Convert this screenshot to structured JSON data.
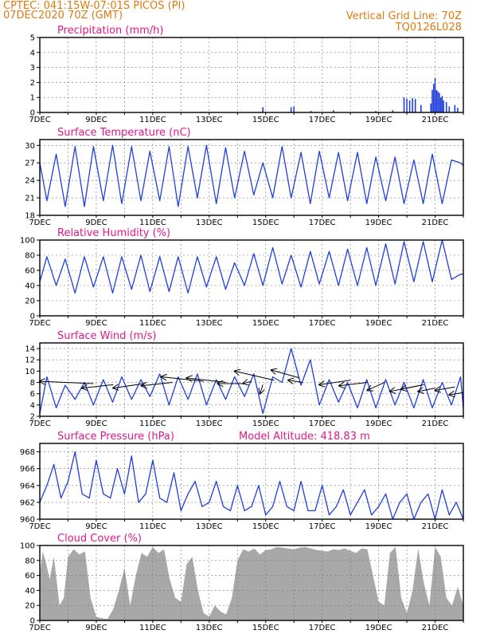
{
  "header": {
    "line1": "CPTEC:  041:15W-07:01S  PICOS (PI)",
    "line2": "07DEC2020 70Z (GMT)",
    "right1": "Vertical Grid Line: 70Z",
    "right2": "TQ0126L028"
  },
  "colors": {
    "line": "#1f3fdc",
    "bar": "#1f3fdc",
    "cloud": "#a8a8a8",
    "title": "#e0188c",
    "header": "#e07a10"
  },
  "x_axis": {
    "labels": [
      "7DEC",
      "9DEC",
      "11DEC",
      "13DEC",
      "15DEC",
      "17DEC",
      "19DEC",
      "21DEC"
    ]
  },
  "chart_data": [
    {
      "id": "precip",
      "type": "bar",
      "title": "Precipitation (mm/h)",
      "ylim": [
        0,
        5
      ],
      "yticks": [
        0,
        1,
        2,
        3,
        4,
        5
      ],
      "x_days": [
        7.9,
        8.6,
        9.3,
        12.7,
        14.9,
        15.9,
        16.0,
        16.6,
        17.4,
        18.9,
        19.5,
        19.9,
        20.0,
        20.1,
        20.2,
        20.3,
        20.5,
        20.85,
        20.9,
        20.95,
        21.0,
        21.05,
        21.1,
        21.15,
        21.2,
        21.25,
        21.3,
        21.4,
        21.5,
        21.7,
        21.8
      ],
      "values": [
        0.05,
        0.04,
        0.05,
        0.04,
        0.35,
        0.35,
        0.4,
        0.1,
        0.15,
        0.1,
        0.15,
        1.0,
        0.9,
        0.8,
        0.95,
        0.9,
        0.5,
        0.6,
        1.5,
        1.9,
        2.3,
        1.5,
        1.4,
        1.3,
        1.0,
        1.1,
        0.8,
        0.7,
        0.4,
        0.5,
        0.3
      ]
    },
    {
      "id": "temp",
      "type": "line",
      "title": "Surface Temperature (nC)",
      "ylim": [
        18,
        31
      ],
      "yticks": [
        18,
        21,
        24,
        27,
        30
      ],
      "x_days": [
        7.0,
        7.25,
        7.58,
        7.9,
        8.25,
        8.58,
        8.9,
        9.25,
        9.58,
        9.9,
        10.25,
        10.58,
        10.9,
        11.25,
        11.58,
        11.9,
        12.25,
        12.58,
        12.9,
        13.25,
        13.58,
        13.9,
        14.25,
        14.58,
        14.9,
        15.25,
        15.58,
        15.9,
        16.25,
        16.58,
        16.9,
        17.25,
        17.58,
        17.9,
        18.25,
        18.58,
        18.9,
        19.25,
        19.58,
        19.9,
        20.25,
        20.58,
        20.9,
        21.25,
        21.58,
        21.9,
        22.0
      ],
      "values": [
        27,
        20.5,
        28.5,
        19.5,
        29.8,
        19.5,
        29.8,
        20.5,
        30.0,
        20.0,
        29.8,
        20.5,
        29.0,
        20.5,
        29.8,
        19.5,
        29.8,
        21.0,
        30.0,
        20.0,
        29.6,
        21.0,
        29.0,
        21.5,
        27.0,
        21.0,
        29.8,
        21.0,
        28.8,
        20.0,
        29.0,
        21.0,
        28.8,
        20.5,
        28.8,
        20.0,
        28.0,
        20.5,
        28.0,
        20.0,
        27.5,
        20.0,
        28.5,
        20.0,
        27.5,
        27.0,
        26.5
      ]
    },
    {
      "id": "rh",
      "type": "line",
      "title": "Relative Humidity (%)",
      "ylim": [
        0,
        100
      ],
      "yticks": [
        0,
        20,
        40,
        60,
        80,
        100
      ],
      "x_days": [
        7.0,
        7.25,
        7.58,
        7.9,
        8.25,
        8.58,
        8.9,
        9.25,
        9.58,
        9.9,
        10.25,
        10.58,
        10.9,
        11.25,
        11.58,
        11.9,
        12.25,
        12.58,
        12.9,
        13.25,
        13.58,
        13.9,
        14.25,
        14.58,
        14.9,
        15.25,
        15.58,
        15.9,
        16.25,
        16.58,
        16.9,
        17.25,
        17.58,
        17.9,
        18.25,
        18.58,
        18.9,
        19.25,
        19.58,
        19.9,
        20.25,
        20.58,
        20.9,
        21.25,
        21.58,
        21.9,
        22.0
      ],
      "values": [
        45,
        78,
        40,
        75,
        30,
        78,
        38,
        78,
        30,
        78,
        35,
        80,
        32,
        78,
        32,
        78,
        30,
        78,
        38,
        78,
        35,
        70,
        40,
        82,
        40,
        90,
        42,
        80,
        38,
        85,
        42,
        85,
        40,
        88,
        40,
        90,
        40,
        95,
        42,
        98,
        45,
        98,
        45,
        100,
        48,
        55,
        55
      ]
    },
    {
      "id": "wind",
      "type": "line",
      "title": "Surface Wind (m/s)",
      "ylim": [
        2,
        15
      ],
      "yticks": [
        2,
        4,
        6,
        8,
        10,
        12,
        14
      ],
      "x_days": [
        7.0,
        7.25,
        7.58,
        7.9,
        8.25,
        8.58,
        8.9,
        9.25,
        9.58,
        9.9,
        10.25,
        10.58,
        10.9,
        11.25,
        11.58,
        11.9,
        12.25,
        12.58,
        12.9,
        13.25,
        13.58,
        13.9,
        14.25,
        14.58,
        14.9,
        15.25,
        15.58,
        15.9,
        16.25,
        16.58,
        16.9,
        17.25,
        17.58,
        17.9,
        18.25,
        18.58,
        18.9,
        19.25,
        19.58,
        19.9,
        20.25,
        20.58,
        20.9,
        21.25,
        21.58,
        21.9,
        22.0
      ],
      "values": [
        2.5,
        9.0,
        3.5,
        7.5,
        5.0,
        8.0,
        4.0,
        8.5,
        4.5,
        9.0,
        5.0,
        8.5,
        5.5,
        9.5,
        4.0,
        9.0,
        5.0,
        9.5,
        4.0,
        8.5,
        5.0,
        9.0,
        5.5,
        9.5,
        2.5,
        9.0,
        8.0,
        14.0,
        7.5,
        12.0,
        4.0,
        8.5,
        4.5,
        8.0,
        3.5,
        8.5,
        3.5,
        8.5,
        4.0,
        8.0,
        3.5,
        8.5,
        3.5,
        8.0,
        4.0,
        9.0,
        3.5
      ],
      "vectors": [
        {
          "x": 7.0,
          "y": 8.2,
          "tx": 8.9,
          "ty": 7.8
        },
        {
          "x": 8.5,
          "y": 7.0,
          "tx": 9.6,
          "ty": 7.6
        },
        {
          "x": 9.6,
          "y": 7.0,
          "tx": 10.7,
          "ty": 7.8
        },
        {
          "x": 10.6,
          "y": 7.4,
          "tx": 11.7,
          "ty": 8.0
        },
        {
          "x": 11.3,
          "y": 9.0,
          "tx": 12.8,
          "ty": 8.2
        },
        {
          "x": 12.2,
          "y": 8.8,
          "tx": 13.6,
          "ty": 8.0
        },
        {
          "x": 13.3,
          "y": 7.8,
          "tx": 14.2,
          "ty": 7.8
        },
        {
          "x": 14.2,
          "y": 7.8,
          "tx": 14.5,
          "ty": 8.2
        },
        {
          "x": 13.9,
          "y": 10.0,
          "tx": 15.3,
          "ty": 8.4
        },
        {
          "x": 14.8,
          "y": 6.0,
          "tx": 14.9,
          "ty": 7.6
        },
        {
          "x": 15.2,
          "y": 10.2,
          "tx": 16.2,
          "ty": 8.8
        },
        {
          "x": 15.8,
          "y": 8.4,
          "tx": 16.3,
          "ty": 8.0
        },
        {
          "x": 16.9,
          "y": 7.6,
          "tx": 18.0,
          "ty": 8.4
        },
        {
          "x": 17.6,
          "y": 7.4,
          "tx": 18.6,
          "ty": 8.0
        },
        {
          "x": 18.6,
          "y": 6.6,
          "tx": 19.2,
          "ty": 8.0
        },
        {
          "x": 19.4,
          "y": 6.4,
          "tx": 20.4,
          "ty": 7.4
        },
        {
          "x": 19.8,
          "y": 6.8,
          "tx": 20.6,
          "ty": 7.6
        },
        {
          "x": 20.4,
          "y": 6.4,
          "tx": 21.0,
          "ty": 7.0
        },
        {
          "x": 21.0,
          "y": 6.6,
          "tx": 21.7,
          "ty": 7.2
        },
        {
          "x": 21.5,
          "y": 5.8,
          "tx": 22.0,
          "ty": 6.2
        }
      ]
    },
    {
      "id": "pres",
      "type": "line",
      "title": "Surface Pressure (hPa)",
      "annotation": "Model Altitude: 418.83 m",
      "ylim": [
        960,
        969
      ],
      "yticks": [
        960,
        962,
        964,
        966,
        968
      ],
      "x_days": [
        7.0,
        7.25,
        7.5,
        7.75,
        8.0,
        8.25,
        8.5,
        8.75,
        9.0,
        9.25,
        9.5,
        9.75,
        10.0,
        10.25,
        10.5,
        10.75,
        11.0,
        11.25,
        11.5,
        11.75,
        12.0,
        12.25,
        12.5,
        12.75,
        13.0,
        13.25,
        13.5,
        13.75,
        14.0,
        14.25,
        14.5,
        14.75,
        15.0,
        15.25,
        15.5,
        15.75,
        16.0,
        16.25,
        16.5,
        16.75,
        17.0,
        17.25,
        17.5,
        17.75,
        18.0,
        18.25,
        18.5,
        18.75,
        19.0,
        19.25,
        19.5,
        19.75,
        20.0,
        20.25,
        20.5,
        20.75,
        21.0,
        21.25,
        21.5,
        21.75,
        22.0
      ],
      "values": [
        962,
        964,
        966.5,
        962.5,
        964.5,
        968,
        963,
        962.5,
        967,
        963,
        962.5,
        966,
        963,
        967.5,
        962,
        963,
        967,
        962.5,
        962,
        965.5,
        961,
        963,
        964.5,
        961.5,
        962,
        964.5,
        961.5,
        961,
        964,
        961,
        961.5,
        964,
        960.5,
        961.5,
        964.5,
        961.5,
        961,
        964.5,
        961,
        961,
        964,
        960.5,
        961.5,
        963.5,
        960.5,
        962,
        963.5,
        960.5,
        961.5,
        963,
        960,
        962,
        963,
        960,
        962,
        963,
        960,
        963.5,
        960.5,
        962,
        960
      ]
    },
    {
      "id": "cloud",
      "type": "area",
      "title": "Cloud Cover (%)",
      "ylim": [
        0,
        100
      ],
      "yticks": [
        0,
        20,
        40,
        60,
        80,
        100
      ],
      "x_days": [
        7.0,
        7.1,
        7.2,
        7.35,
        7.5,
        7.7,
        7.85,
        8.0,
        8.2,
        8.4,
        8.6,
        8.8,
        9.0,
        9.2,
        9.4,
        9.6,
        9.8,
        10.0,
        10.2,
        10.4,
        10.6,
        10.8,
        11.0,
        11.2,
        11.4,
        11.6,
        11.8,
        12.0,
        12.2,
        12.4,
        12.6,
        12.8,
        13.0,
        13.2,
        13.4,
        13.6,
        13.8,
        14.0,
        14.2,
        14.4,
        14.6,
        14.8,
        15.0,
        15.2,
        15.4,
        15.6,
        15.8,
        16.0,
        16.2,
        16.4,
        16.6,
        16.8,
        17.0,
        17.2,
        17.4,
        17.6,
        17.8,
        18.0,
        18.2,
        18.4,
        18.6,
        18.8,
        19.0,
        19.2,
        19.4,
        19.6,
        19.8,
        20.0,
        20.2,
        20.4,
        20.6,
        20.8,
        21.0,
        21.2,
        21.4,
        21.6,
        21.8,
        22.0
      ],
      "values": [
        60,
        92,
        80,
        55,
        85,
        20,
        30,
        85,
        95,
        88,
        92,
        30,
        5,
        3,
        2,
        15,
        40,
        70,
        20,
        60,
        90,
        85,
        98,
        90,
        95,
        55,
        30,
        25,
        75,
        85,
        40,
        10,
        5,
        20,
        12,
        8,
        30,
        80,
        95,
        92,
        96,
        88,
        94,
        95,
        98,
        97,
        96,
        95,
        97,
        98,
        96,
        94,
        93,
        92,
        95,
        94,
        96,
        93,
        90,
        96,
        95,
        60,
        25,
        20,
        90,
        98,
        30,
        10,
        40,
        96,
        50,
        20,
        98,
        85,
        30,
        20,
        45,
        20
      ]
    }
  ]
}
